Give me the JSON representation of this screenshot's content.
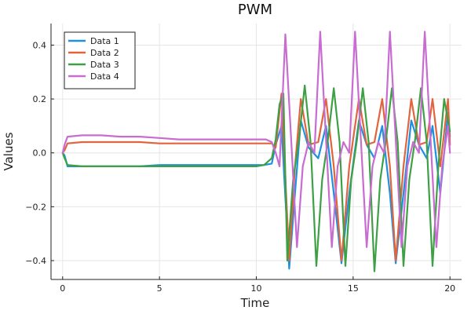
{
  "chart_data": {
    "type": "line",
    "title": "PWM",
    "xlabel": "Time",
    "ylabel": "Values",
    "xlim": [
      -0.6,
      20.6
    ],
    "ylim": [
      -0.47,
      0.48
    ],
    "xticks": [
      0,
      5,
      10,
      15,
      20
    ],
    "xtick_labels": [
      "0",
      "5",
      "10",
      "15",
      "20"
    ],
    "yticks": [
      -0.4,
      -0.2,
      0.0,
      0.2,
      0.4
    ],
    "ytick_labels": [
      "−0.4",
      "−0.2",
      "0.0",
      "0.2",
      "0.4"
    ],
    "grid": true,
    "legend_position": "top-left",
    "series": [
      {
        "name": "Data 1",
        "color": "#1f8fe0",
        "x": [
          0,
          0.1,
          0.25,
          1,
          2,
          3,
          4,
          5,
          6,
          7,
          8,
          9,
          10,
          10.4,
          10.8,
          11.0,
          11.3,
          11.7,
          12.0,
          12.3,
          12.7,
          13.2,
          13.6,
          14.0,
          14.4,
          14.8,
          15.3,
          15.7,
          16.1,
          16.5,
          16.9,
          17.2,
          17.6,
          18.0,
          18.4,
          18.8,
          19.1,
          19.5,
          19.9,
          20.0
        ],
        "y": [
          0,
          -0.01,
          -0.05,
          -0.05,
          -0.05,
          -0.05,
          -0.05,
          -0.045,
          -0.045,
          -0.045,
          -0.045,
          -0.045,
          -0.045,
          -0.045,
          -0.04,
          0.03,
          0.1,
          -0.43,
          -0.15,
          0.12,
          0.02,
          -0.02,
          0.1,
          -0.15,
          -0.41,
          -0.15,
          0.12,
          0.03,
          -0.02,
          0.1,
          -0.15,
          -0.41,
          -0.15,
          0.12,
          0.03,
          -0.02,
          0.1,
          -0.15,
          0.15,
          0.06
        ]
      },
      {
        "name": "Data 2",
        "color": "#e2643c",
        "x": [
          0,
          0.1,
          0.25,
          1,
          2,
          3,
          4,
          5,
          6,
          7,
          8,
          9,
          10,
          10.8,
          11.0,
          11.3,
          11.7,
          12.0,
          12.3,
          12.7,
          13.2,
          13.6,
          14.0,
          14.4,
          14.8,
          15.3,
          15.7,
          16.1,
          16.5,
          16.9,
          17.2,
          17.6,
          18.0,
          18.4,
          18.8,
          19.1,
          19.5,
          19.9,
          20.0
        ],
        "y": [
          0,
          0.01,
          0.035,
          0.04,
          0.04,
          0.04,
          0.04,
          0.035,
          0.035,
          0.035,
          0.035,
          0.035,
          0.035,
          0.035,
          0.02,
          0.22,
          -0.4,
          -0.05,
          0.2,
          0.03,
          0.04,
          0.2,
          -0.05,
          -0.4,
          -0.05,
          0.2,
          0.03,
          0.04,
          0.2,
          -0.05,
          -0.4,
          -0.05,
          0.2,
          0.03,
          0.04,
          0.2,
          -0.05,
          0.2,
          0.03
        ]
      },
      {
        "name": "Data 3",
        "color": "#3ea045",
        "x": [
          0,
          0.1,
          0.25,
          1,
          2,
          3,
          4,
          5,
          6,
          7,
          8,
          9,
          10,
          10.4,
          10.8,
          11.0,
          11.2,
          11.4,
          11.6,
          11.9,
          12.2,
          12.5,
          12.8,
          13.1,
          13.4,
          13.7,
          14.0,
          14.3,
          14.6,
          14.9,
          15.2,
          15.5,
          15.8,
          16.1,
          16.4,
          16.7,
          17.0,
          17.3,
          17.6,
          17.9,
          18.2,
          18.5,
          18.8,
          19.1,
          19.4,
          19.7,
          20.0
        ],
        "y": [
          0,
          -0.02,
          -0.045,
          -0.05,
          -0.05,
          -0.05,
          -0.05,
          -0.05,
          -0.05,
          -0.05,
          -0.05,
          -0.05,
          -0.05,
          -0.045,
          -0.02,
          0.05,
          0.18,
          0.22,
          -0.4,
          -0.1,
          0.05,
          0.25,
          0.04,
          -0.42,
          -0.1,
          0.05,
          0.24,
          0.04,
          -0.42,
          -0.1,
          0.05,
          0.24,
          0.04,
          -0.44,
          -0.1,
          0.05,
          0.24,
          0.04,
          -0.42,
          -0.1,
          0.05,
          0.24,
          0.04,
          -0.42,
          -0.05,
          0.2,
          0.08
        ]
      },
      {
        "name": "Data 4",
        "color": "#c86cd2",
        "x": [
          0,
          0.1,
          0.25,
          1,
          2,
          3,
          4,
          5,
          6,
          7,
          8,
          9,
          10,
          10.5,
          10.8,
          11.0,
          11.2,
          11.5,
          11.8,
          12.1,
          12.4,
          12.7,
          13.0,
          13.3,
          13.6,
          13.9,
          14.2,
          14.5,
          14.8,
          15.1,
          15.4,
          15.7,
          16.0,
          16.3,
          16.6,
          16.9,
          17.2,
          17.5,
          17.8,
          18.1,
          18.4,
          18.7,
          19.0,
          19.3,
          19.6,
          19.9,
          20.0
        ],
        "y": [
          0,
          0.03,
          0.06,
          0.065,
          0.065,
          0.06,
          0.06,
          0.055,
          0.05,
          0.05,
          0.05,
          0.05,
          0.05,
          0.05,
          0.04,
          0.0,
          -0.05,
          0.44,
          0.05,
          -0.35,
          -0.05,
          0.04,
          0.0,
          0.45,
          0.05,
          -0.35,
          -0.05,
          0.04,
          0.0,
          0.45,
          0.05,
          -0.35,
          -0.05,
          0.04,
          0.0,
          0.45,
          0.05,
          -0.35,
          -0.05,
          0.04,
          0.0,
          0.45,
          0.05,
          -0.35,
          -0.05,
          0.1,
          0.0
        ]
      }
    ]
  }
}
